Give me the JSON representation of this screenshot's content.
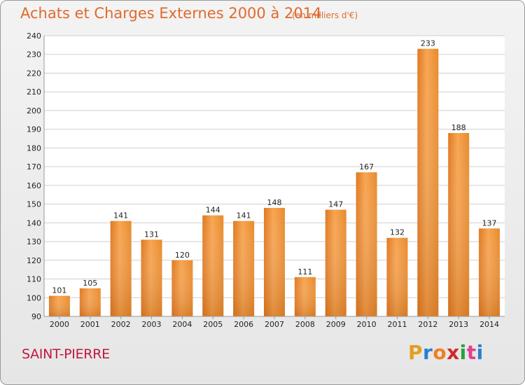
{
  "chart_data": {
    "type": "bar",
    "title": "Achats et Charges Externes 2000 à 2014",
    "subtitle": "(en milliers d'€)",
    "categories": [
      "2000",
      "2001",
      "2002",
      "2003",
      "2004",
      "2005",
      "2006",
      "2007",
      "2008",
      "2009",
      "2010",
      "2011",
      "2012",
      "2013",
      "2014"
    ],
    "values": [
      101,
      105,
      141,
      131,
      120,
      144,
      141,
      148,
      111,
      147,
      167,
      132,
      233,
      188,
      137
    ],
    "ylim": [
      90,
      240
    ],
    "yticks": [
      90,
      100,
      110,
      120,
      130,
      140,
      150,
      160,
      170,
      180,
      190,
      200,
      210,
      220,
      230,
      240
    ],
    "grid": true,
    "bar_color": "#f0912f"
  },
  "footer": {
    "place": "SAINT-PIERRE",
    "logo": [
      "P",
      "r",
      "o",
      "x",
      "i",
      "t",
      "i"
    ],
    "logo_colors": [
      "#e0a020",
      "#2a7fd0",
      "#f08020",
      "#d02a2a",
      "#2aa040",
      "#e04090",
      "#2a7fd0"
    ]
  }
}
